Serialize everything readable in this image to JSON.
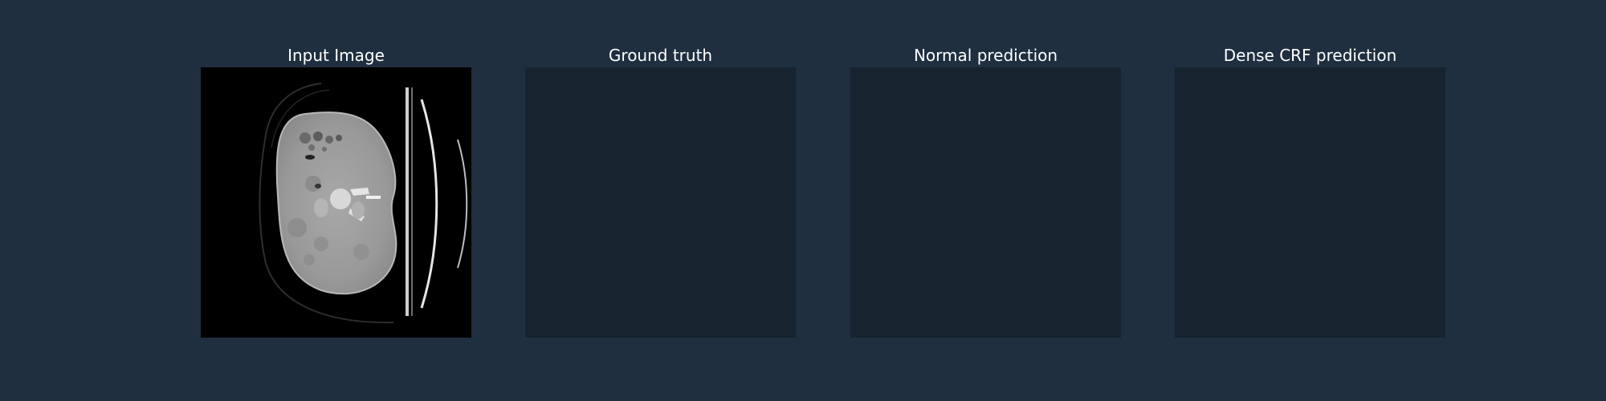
{
  "panels": [
    {
      "title": "Input Image",
      "content": "ct-scan-image"
    },
    {
      "title": "Ground truth",
      "content": "empty-mask"
    },
    {
      "title": "Normal prediction",
      "content": "empty-mask"
    },
    {
      "title": "Dense CRF prediction",
      "content": "empty-mask"
    }
  ],
  "colors": {
    "figure_background": "#1f2f3f",
    "mask_background": "#17232e",
    "title_text": "#ffffff",
    "scan_background": "#000000"
  }
}
